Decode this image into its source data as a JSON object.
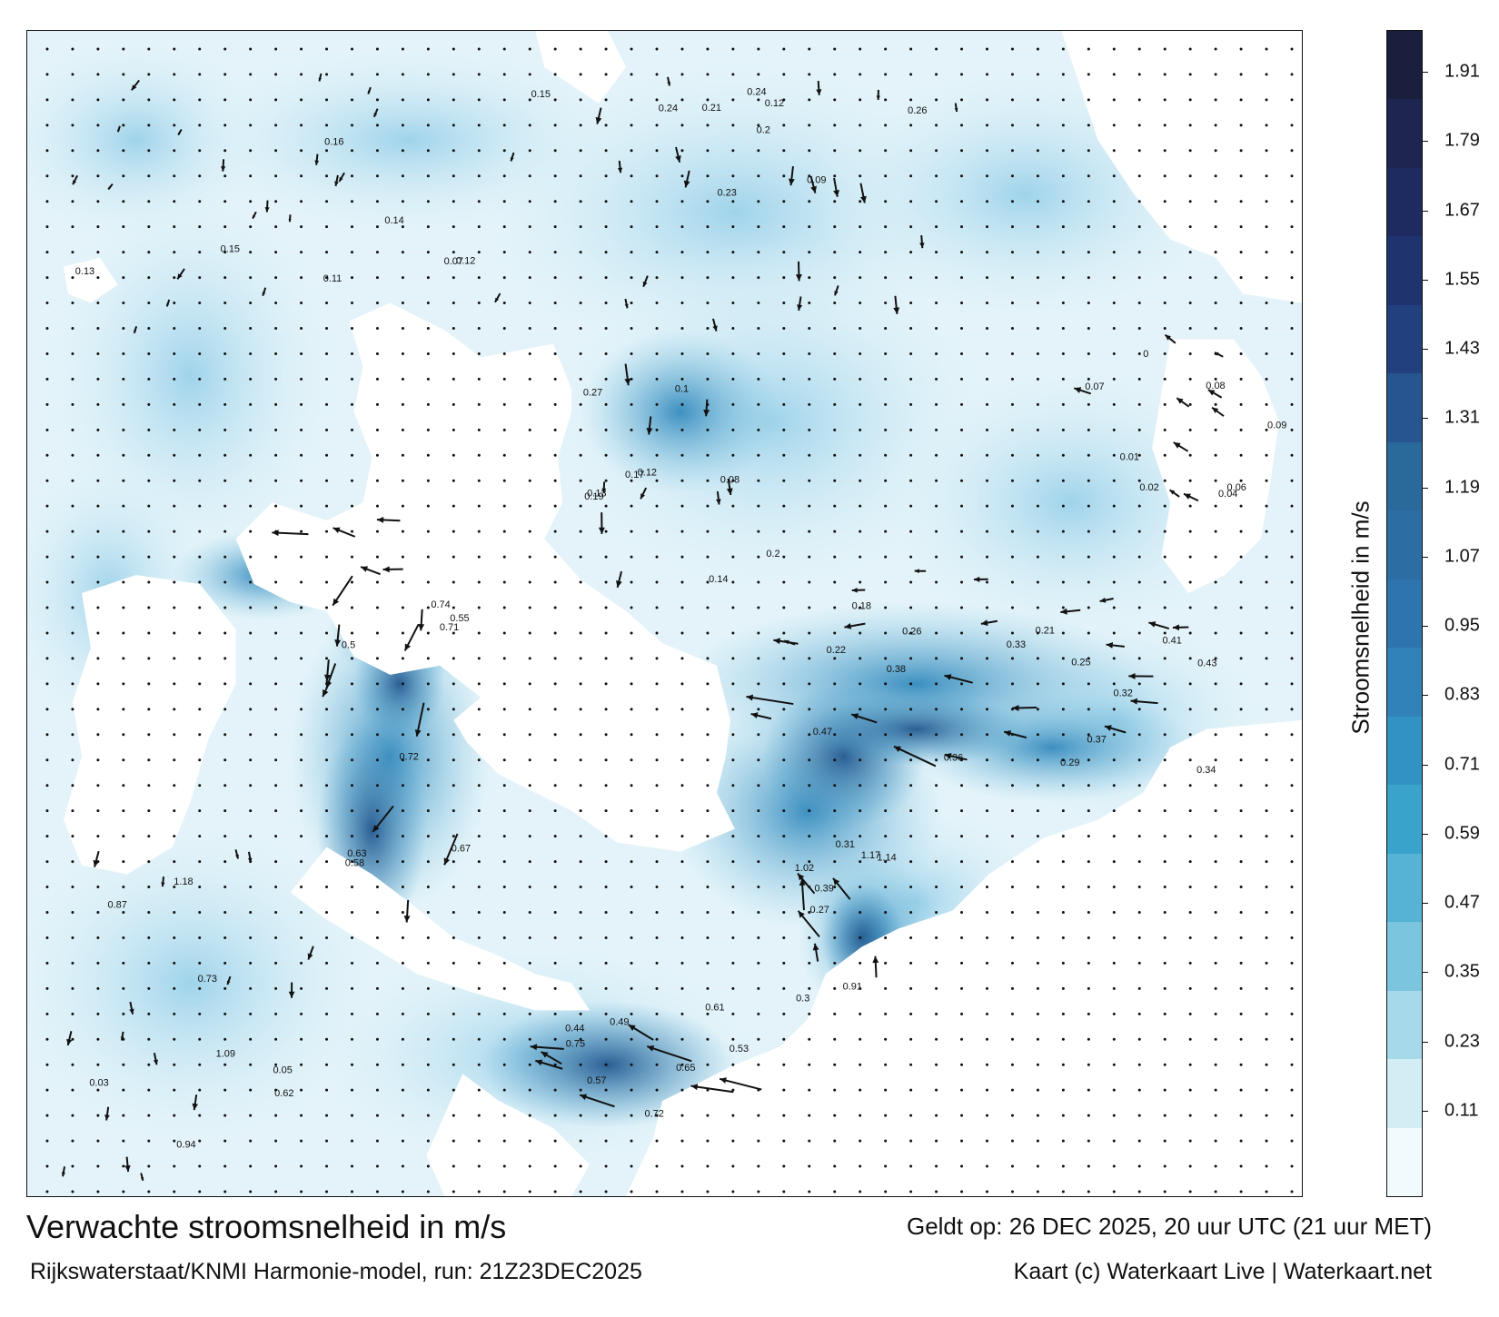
{
  "title": "Verwachte stroomsnelheid in m/s",
  "subtitle": "Rijkswaterstaat/KNMI Harmonie-model, run: 21Z23DEC2025",
  "valid_time": "Geldt op: 26 DEC 2025, 20 uur UTC (21 uur MET)",
  "credit": "Kaart (c) Waterkaart Live | Waterkaart.net",
  "legend": {
    "label": "Stroomsnelheid in m/s",
    "ticks": [
      "1.91",
      "1.79",
      "1.67",
      "1.55",
      "1.43",
      "1.31",
      "1.19",
      "1.07",
      "0.95",
      "0.83",
      "0.71",
      "0.59",
      "0.47",
      "0.35",
      "0.23",
      "0.11"
    ],
    "colors": [
      "#1a1f3d",
      "#1d2550",
      "#1e2b60",
      "#1f336f",
      "#22407e",
      "#27558f",
      "#2a6a9a",
      "#2c6ea4",
      "#2e74ad",
      "#3082b8",
      "#3293c2",
      "#3aa3cc",
      "#55b3d6",
      "#7cc5df",
      "#a6d9ea",
      "#d3edf5",
      "#f2fafd"
    ]
  },
  "sea_values": [
    "0.15",
    "0.11",
    "0.16",
    "0.07",
    "0.12",
    "0.14",
    "0.13",
    "0.15",
    "0.09",
    "0.12",
    "0.2",
    "0.21",
    "0.24",
    "0.23",
    "0.24",
    "0.26",
    "0.27",
    "0.13",
    "0.17",
    "0.19",
    "0.14",
    "0.12",
    "0.1",
    "0.08",
    "0.18",
    "0.2",
    "0.21",
    "0.22",
    "0.25",
    "0.26",
    "0.33",
    "0.41",
    "0.36",
    "0.37",
    "0.43",
    "0.47",
    "0.34",
    "0.38",
    "0.32",
    "0.29",
    "0.5",
    "0.55",
    "0.58",
    "0.67",
    "0.72",
    "0.74",
    "0.71",
    "0.63",
    "0.61",
    "0.57",
    "0.75",
    "0.72",
    "0.65",
    "0.53",
    "0.49",
    "0.44",
    "0.39",
    "0.31",
    "0.3",
    "0.27",
    "0.91",
    "1.02",
    "1.14",
    "1.17",
    "1.18",
    "1.09",
    "0.94",
    "0.87",
    "0.73",
    "0.62",
    "0.05",
    "0.03",
    "0.02",
    "0.04",
    "0.06",
    "0.01",
    "0.07",
    "0.08",
    "0.09",
    "0"
  ]
}
